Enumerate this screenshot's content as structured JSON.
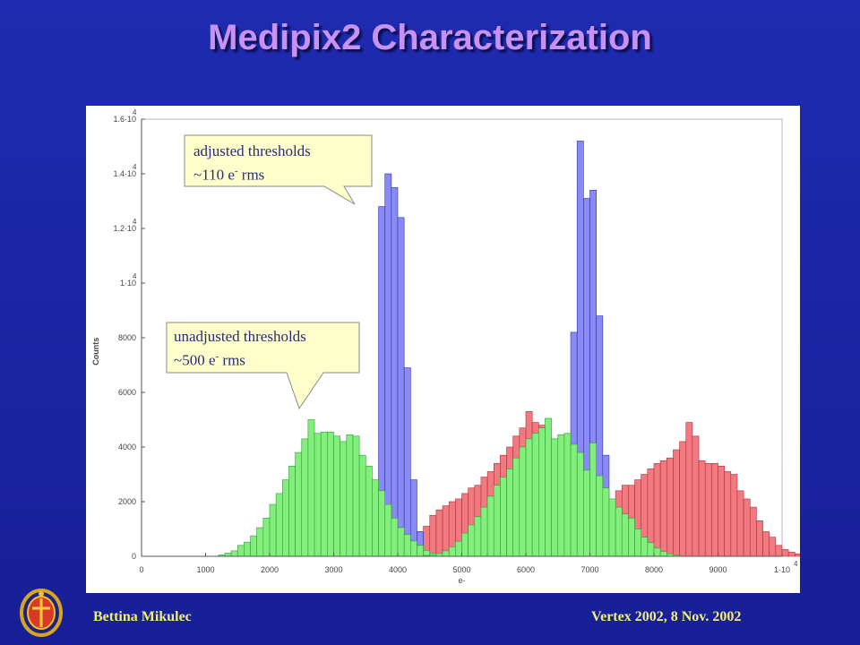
{
  "slide": {
    "title": "Medipix2 Characterization",
    "footer_left": "Bettina Mikulec",
    "footer_right": "Vertex 2002, 8 Nov. 2002"
  },
  "callouts": {
    "adjusted": {
      "line1": "adjusted thresholds",
      "line2_pre": "~110 e",
      "line2_sup": "-",
      "line2_post": " rms"
    },
    "unadjusted": {
      "line1": "unadjusted thresholds",
      "line2_pre": "~500 e",
      "line2_sup": "-",
      "line2_post": " rms"
    }
  },
  "chart_data": {
    "type": "bar",
    "xlabel": "e-",
    "ylabel": "Counts",
    "xlim": [
      0,
      10000
    ],
    "ylim": [
      0,
      16000
    ],
    "x_ticks": [
      {
        "value": 0,
        "label": "0"
      },
      {
        "value": 1000,
        "label": "1000"
      },
      {
        "value": 2000,
        "label": "2000"
      },
      {
        "value": 3000,
        "label": "3000"
      },
      {
        "value": 4000,
        "label": "4000"
      },
      {
        "value": 5000,
        "label": "5000"
      },
      {
        "value": 6000,
        "label": "6000"
      },
      {
        "value": 7000,
        "label": "7000"
      },
      {
        "value": 8000,
        "label": "8000"
      },
      {
        "value": 9000,
        "label": "9000"
      },
      {
        "value": 10000,
        "label": "1·10",
        "exp": "4"
      }
    ],
    "y_ticks": [
      {
        "value": 0,
        "label": "0"
      },
      {
        "value": 2000,
        "label": "2000"
      },
      {
        "value": 4000,
        "label": "4000"
      },
      {
        "value": 6000,
        "label": "6000"
      },
      {
        "value": 8000,
        "label": "8000"
      },
      {
        "value": 10000,
        "label": "1·10",
        "exp": "4"
      },
      {
        "value": 12000,
        "label": "1.2·10",
        "exp": "4"
      },
      {
        "value": 14000,
        "label": "1.4·10",
        "exp": "4"
      },
      {
        "value": 16000,
        "label": "1.6·10",
        "exp": "4"
      }
    ],
    "bin_width": 100,
    "series": [
      {
        "color": "#f07a80",
        "stroke": "#b32a36",
        "bins": [
          {
            "x0": 3900,
            "values": [
              80,
              150,
              300,
              550,
              900,
              1100,
              1500,
              1700,
              1850,
              2000,
              2100,
              2300,
              2500,
              2600,
              2900,
              3100,
              3400,
              3700,
              4000,
              4400,
              4700,
              5300,
              4900,
              4800,
              4400,
              4100,
              3900,
              3800,
              3700,
              3400,
              3000,
              2700,
              2300,
              1900,
              1400,
              1000,
              650,
              350,
              200,
              100,
              50
            ]
          },
          {
            "x0": 6700,
            "values": [
              100,
              250,
              400,
              700,
              1150,
              1600,
              2000,
              2400,
              2600,
              2600,
              2800,
              3000,
              3200,
              3400,
              3500,
              3600,
              3900,
              4200,
              4900,
              4400,
              3500,
              3400,
              3400,
              3300,
              3100,
              3000,
              2400,
              2100,
              1800,
              1300,
              900,
              700,
              400,
              250,
              150,
              90,
              40
            ]
          }
        ]
      },
      {
        "color": "#8a8af5",
        "stroke": "#3030b0",
        "bins": [
          {
            "x0": 3600,
            "values": [
              1400,
              12800,
              14000,
              13500,
              12400,
              6900,
              2800,
              900,
              150
            ]
          },
          {
            "x0": 6600,
            "values": [
              600,
              8200,
              15200,
              13100,
              13400,
              8800,
              3700,
              1500,
              400,
              100
            ]
          }
        ]
      },
      {
        "color": "#82ef7c",
        "stroke": "#2aa030",
        "bins": [
          {
            "x0": 1200,
            "values": [
              50,
              120,
              200,
              400,
              520,
              750,
              1050,
              1400,
              1900,
              2300,
              2800,
              3300,
              3800,
              4300,
              5000,
              4500,
              4550,
              4550,
              4400,
              4200,
              4450,
              4400,
              3700,
              3300,
              2800,
              2400,
              1900,
              1400,
              1050,
              800,
              560,
              400,
              220,
              120,
              70
            ]
          },
          {
            "x0": 4400,
            "values": [
              30,
              60,
              100,
              200,
              350,
              550,
              850,
              1150,
              1450,
              1800,
              2200,
              2600,
              2900,
              3200,
              3600,
              4000,
              4300,
              4500,
              4700,
              5050,
              4300,
              4450,
              4500,
              4100,
              3800,
              3150,
              4150,
              2950,
              2500,
              2100,
              1800,
              1550,
              1400,
              1000,
              700,
              500,
              300,
              180,
              90,
              40
            ]
          }
        ]
      }
    ]
  }
}
